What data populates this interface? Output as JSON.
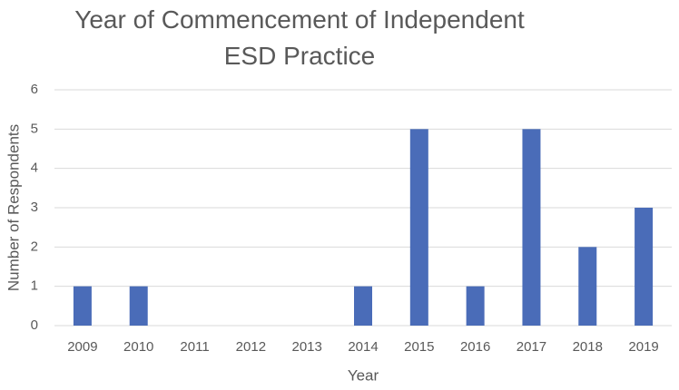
{
  "chart_data": {
    "type": "bar",
    "title": "Year of Commencement of Independent ESD Practice",
    "x_label": "Year",
    "y_label": "Number of Respondents",
    "categories": [
      "2009",
      "2010",
      "2011",
      "2012",
      "2013",
      "2014",
      "2015",
      "2016",
      "2017",
      "2018",
      "2019"
    ],
    "values": [
      1,
      1,
      0,
      0,
      0,
      1,
      5,
      1,
      5,
      2,
      3
    ],
    "color": "#4a6cb8",
    "ylim": [
      0,
      6
    ],
    "yticks": [
      0,
      1,
      2,
      3,
      4,
      5,
      6
    ],
    "grid": true
  }
}
